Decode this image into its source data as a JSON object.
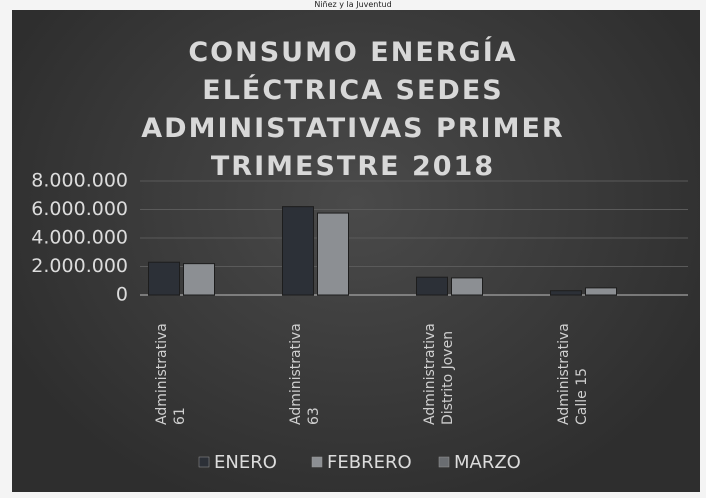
{
  "header_text": "Niñez y la Juventud",
  "chart_data": {
    "type": "bar",
    "title": "CONSUMO ENERGÍA ELÉCTRICA SEDES ADMINISTATIVAS PRIMER TRIMESTRE 2018",
    "categories": [
      "Administrativa\n61",
      "Administrativa\n63",
      "Administrativa\nDistrito Joven",
      "Administrativa\nCalle 15"
    ],
    "series": [
      {
        "name": "ENERO",
        "color": "#2c3037",
        "values": [
          2300000,
          6200000,
          1250000,
          300000
        ]
      },
      {
        "name": "FEBRERO",
        "color": "#8c8f93",
        "values": [
          2200000,
          5750000,
          1200000,
          500000
        ]
      },
      {
        "name": "MARZO",
        "color": "#6a6d71",
        "values": [
          0,
          0,
          0,
          0
        ]
      }
    ],
    "ylim": [
      0,
      8000000
    ],
    "yticks": [
      0,
      {
        "value": 2000000,
        "label": "2.000.000"
      },
      {
        "value": 4000000,
        "label": "4.000.000"
      },
      {
        "value": 6000000,
        "label": "6.000.000"
      },
      {
        "value": 8000000,
        "label": "8.000.000"
      }
    ],
    "grid": true,
    "legend": "bottom"
  }
}
